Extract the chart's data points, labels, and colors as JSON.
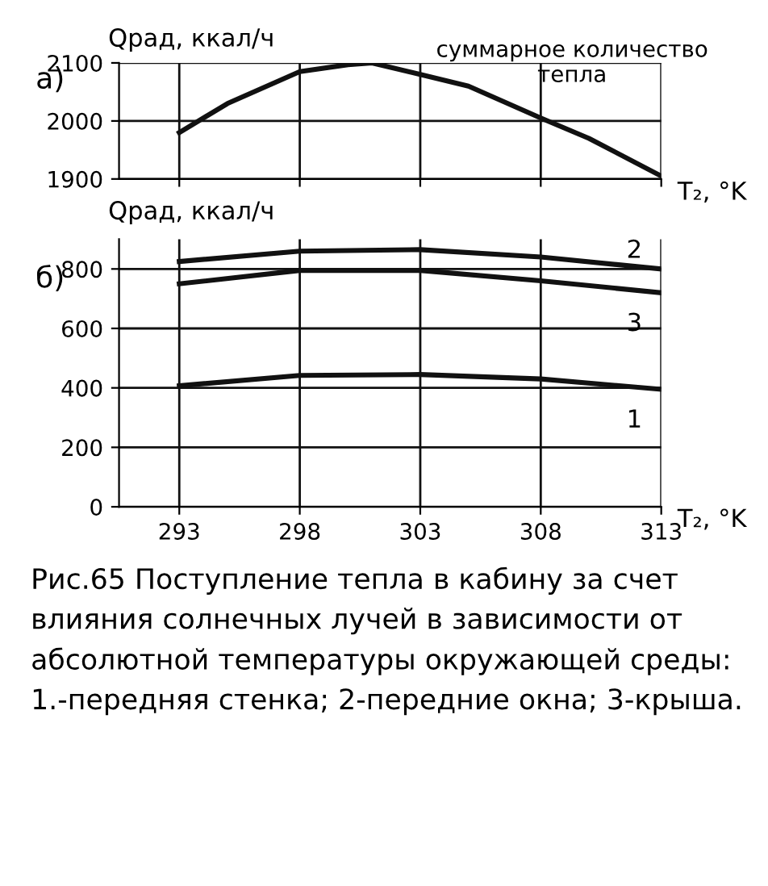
{
  "chart_data": [
    {
      "type": "line",
      "title": "а)",
      "ylabel": "Qрад, ккал/ч",
      "xlabel": "T₂, °K",
      "series": [
        {
          "name": "суммарное количество\nтепла",
          "color": "#111111",
          "x": [
            293,
            295,
            298,
            300,
            301,
            303,
            305,
            308,
            310,
            313
          ],
          "values": [
            1980,
            2030,
            2085,
            2097,
            2100,
            2080,
            2060,
            2005,
            1970,
            1905
          ]
        }
      ],
      "xlim": [
        290.5,
        313
      ],
      "xticks": [
        293,
        298,
        303,
        308,
        313
      ],
      "ylim": [
        1900,
        2100
      ],
      "yticks": [
        1900,
        2000,
        2100
      ],
      "grid": true,
      "tick_labels": "y",
      "marker": "none",
      "line_style": "solid"
    },
    {
      "type": "line",
      "title": "б)",
      "ylabel": "Qрад, ккал/ч",
      "xlabel": "T₂, °K",
      "series": [
        {
          "name": "1",
          "color": "#111111",
          "x": [
            293,
            298,
            303,
            308,
            313
          ],
          "values": [
            407,
            442,
            445,
            430,
            395
          ]
        },
        {
          "name": "2",
          "color": "#111111",
          "x": [
            293,
            298,
            303,
            308,
            313
          ],
          "values": [
            825,
            860,
            865,
            840,
            800
          ]
        },
        {
          "name": "3",
          "color": "#111111",
          "x": [
            293,
            298,
            303,
            308,
            313
          ],
          "values": [
            750,
            795,
            795,
            760,
            720
          ]
        }
      ],
      "xlim": [
        290.5,
        313
      ],
      "xticks": [
        293,
        298,
        303,
        308,
        313
      ],
      "ylim": [
        0,
        900
      ],
      "yticks": [
        0,
        200,
        400,
        600,
        800
      ],
      "grid": true,
      "marker": "none",
      "line_style": "solid",
      "annotations": [
        "Рис.65 Поступление тепла в кабину за счет влияния солнечных лучей в зависимости от абсолютной температуры окружающей среды:   1.-передняя стенка; 2-передние окна; 3-крыша."
      ]
    }
  ]
}
